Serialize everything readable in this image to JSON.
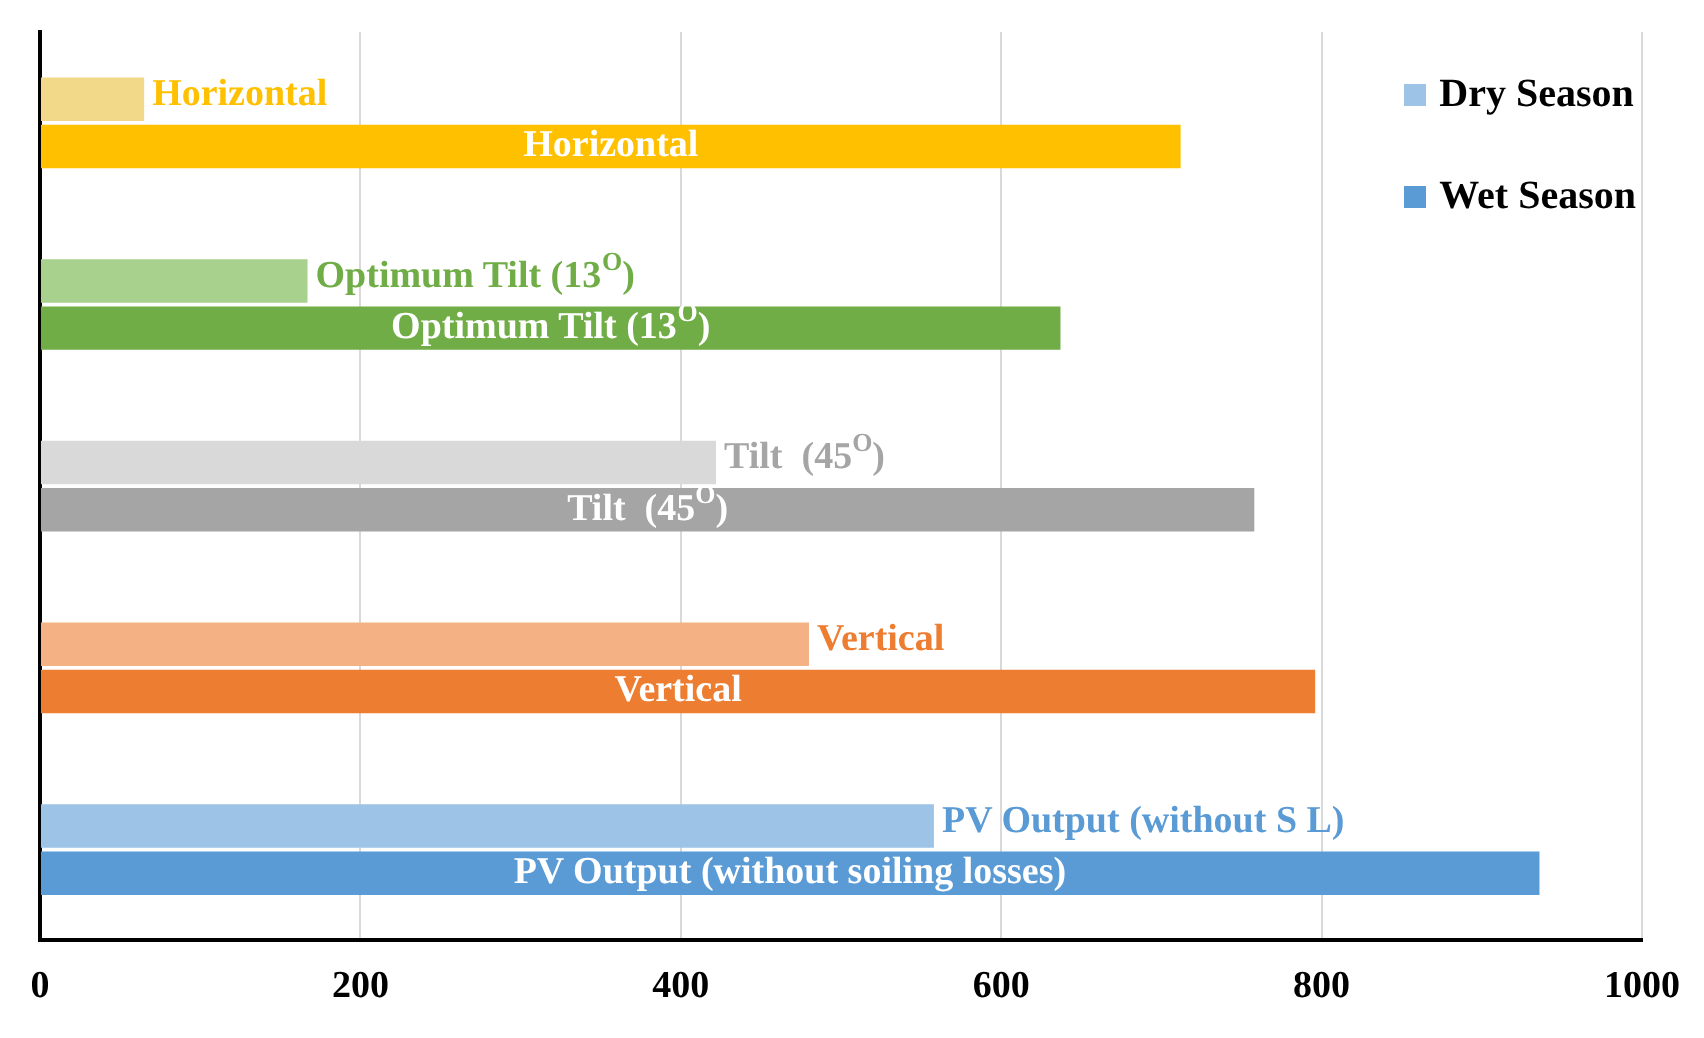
{
  "chart_data": {
    "type": "bar",
    "orientation": "horizontal",
    "categories": [
      null,
      null,
      null,
      null,
      null
    ],
    "series": [
      {
        "name": "Dry Season",
        "color": "#9dc3e6",
        "colors": [
          "#f2d98a",
          "#a9d18e",
          "#d9d9d9",
          "#f4b183",
          "#9dc3e6"
        ],
        "values": [
          65,
          167,
          422,
          480,
          558
        ]
      },
      {
        "name": "Wet Season",
        "color": "#5b9bd5",
        "colors": [
          "#ffc000",
          "#70ad47",
          "#a5a5a5",
          "#ed7d31",
          "#5b9bd5"
        ],
        "values": [
          712,
          637,
          758,
          796,
          936
        ]
      }
    ],
    "annotations": [
      "Horizontal",
      "Horizontal",
      "Optimum Tilt (13$^{O}$)",
      "Optimum Tilt (13$^{O}$)",
      "Tilt  (45$^{O}$)",
      "Tilt  (45$^{O}$)",
      "Vertical",
      "Vertical",
      "PV Output (without S L)",
      "PV Output (without soiling losses)"
    ],
    "xlim": [
      0,
      1000
    ],
    "xticks": [
      0,
      200,
      400,
      600,
      800,
      1000
    ],
    "grid": "x",
    "legend": "top right"
  }
}
